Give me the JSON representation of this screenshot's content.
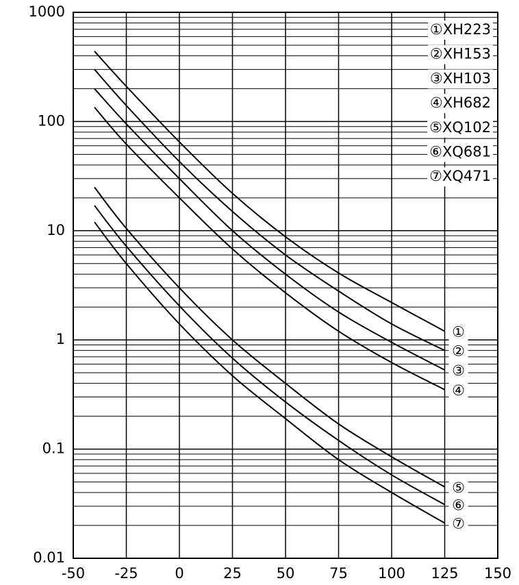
{
  "chart_data": {
    "type": "line",
    "log_y": true,
    "grid": true,
    "color": "#000000",
    "x": [
      -40,
      -25,
      0,
      25,
      50,
      75,
      100,
      125
    ],
    "series": [
      {
        "name": "XH223",
        "marker": "①",
        "color": "#000000",
        "values": [
          440,
          210,
          65,
          22,
          8.8,
          4.1,
          2.2,
          1.2
        ]
      },
      {
        "name": "XH153",
        "marker": "②",
        "color": "#000000",
        "values": [
          300,
          140,
          43,
          15,
          6,
          2.8,
          1.4,
          0.8
        ]
      },
      {
        "name": "XH103",
        "marker": "③",
        "color": "#000000",
        "values": [
          200,
          95,
          30,
          10,
          4,
          1.8,
          0.95,
          0.53
        ]
      },
      {
        "name": "XH682",
        "marker": "④",
        "color": "#000000",
        "values": [
          135,
          62,
          20,
          6.8,
          2.7,
          1.2,
          0.62,
          0.35
        ]
      },
      {
        "name": "XQ102",
        "marker": "⑤",
        "color": "#000000",
        "values": [
          25,
          10.5,
          3,
          1,
          0.4,
          0.17,
          0.085,
          0.045
        ]
      },
      {
        "name": "XQ681",
        "marker": "⑥",
        "color": "#000000",
        "values": [
          17,
          7.2,
          2.05,
          0.68,
          0.27,
          0.12,
          0.058,
          0.031
        ]
      },
      {
        "name": "XQ471",
        "marker": "⑦",
        "color": "#000000",
        "values": [
          12,
          5,
          1.4,
          0.47,
          0.19,
          0.08,
          0.04,
          0.021
        ]
      }
    ],
    "xlim": [
      -50,
      150
    ],
    "xticks": [
      -50,
      -25,
      0,
      25,
      50,
      75,
      100,
      125,
      150
    ],
    "ylim": [
      0.01,
      1000
    ],
    "yticks": [
      0.01,
      0.1,
      1,
      10,
      100,
      1000
    ],
    "yminorticks": [
      0.02,
      0.03,
      0.04,
      0.05,
      0.06,
      0.07,
      0.08,
      0.09,
      0.2,
      0.3,
      0.4,
      0.5,
      0.6,
      0.7,
      0.8,
      0.9,
      2,
      3,
      4,
      5,
      6,
      7,
      8,
      9,
      20,
      30,
      40,
      50,
      60,
      70,
      80,
      90,
      200,
      300,
      400,
      500,
      600,
      700,
      800,
      900
    ],
    "legend": "upper right"
  }
}
